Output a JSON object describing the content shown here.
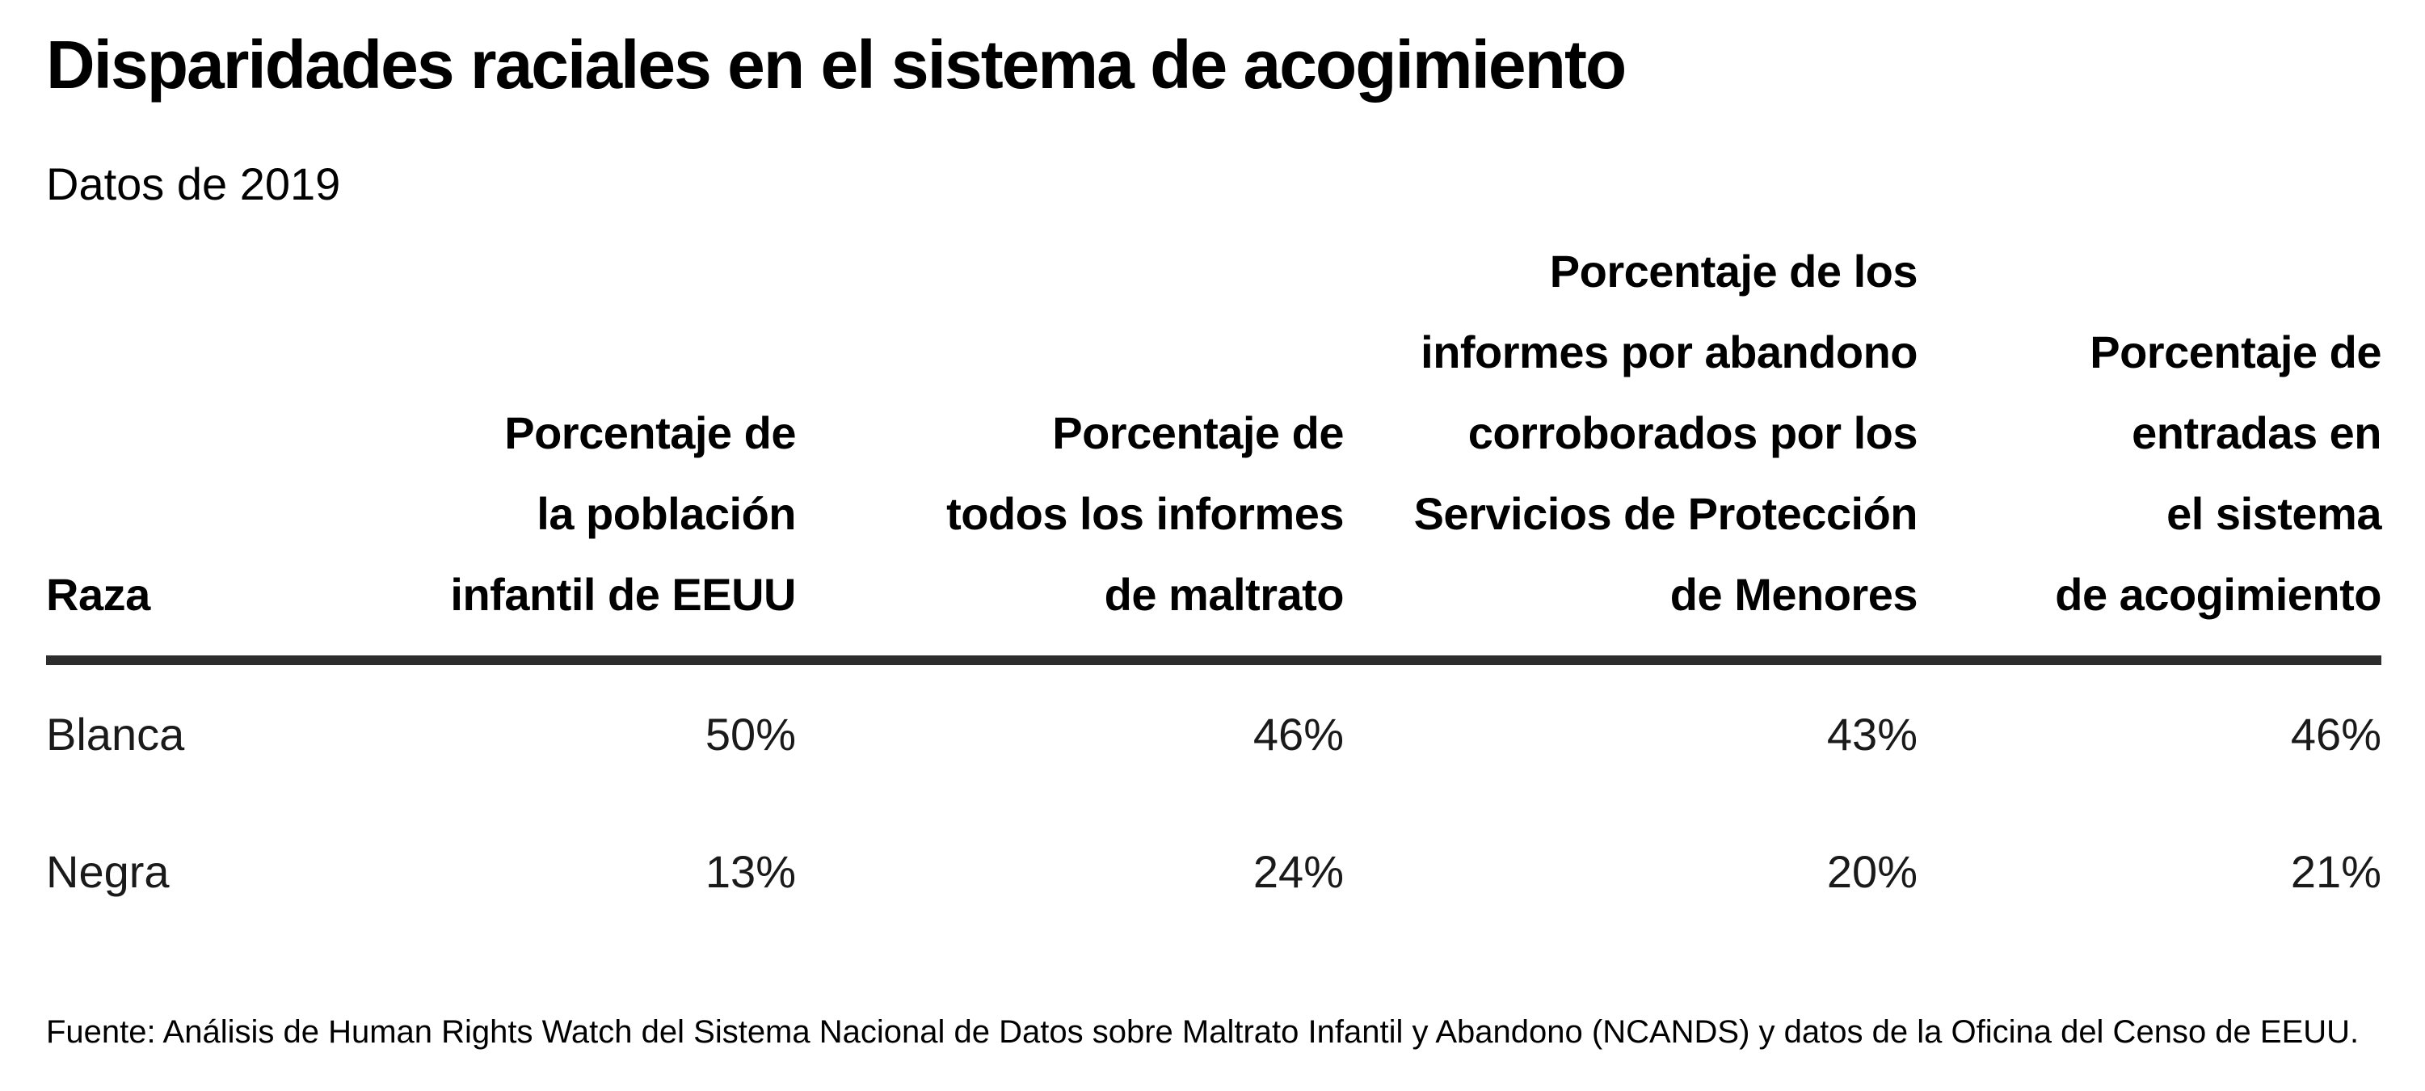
{
  "title": "Disparidades raciales en el sistema de acogimiento",
  "subtitle": "Datos de 2019",
  "source": "Fuente: Análisis de Human Rights Watch del Sistema Nacional de Datos sobre Maltrato Infantil y Abandono (NCANDS) y datos de la Oficina del Censo de EEUU.",
  "colors": {
    "background": "#ffffff",
    "text": "#000000",
    "data_text": "#1a1a1a",
    "rule": "#2d2d2d"
  },
  "table": {
    "header": {
      "race": "Raza",
      "child_population": "Porcentaje de\nla población\ninfantil de EEUU",
      "all_reports": "Porcentaje de\ntodos los informes\nde maltrato",
      "substantiated_reports": "Porcentaje de los\ninformes por abandono\ncorroborados por los\nServicios de Protección\nde Menores",
      "foster_entries": "Porcentaje de\nentradas en\nel sistema\nde acogimiento"
    },
    "rows": [
      {
        "race": "Blanca",
        "cells": [
          "50%",
          "46%",
          "43%",
          "46%"
        ]
      },
      {
        "race": "Negra",
        "cells": [
          "13%",
          "24%",
          "20%",
          "21%"
        ]
      }
    ]
  },
  "chart_data": {
    "type": "table",
    "title": "Disparidades raciales en el sistema de acogimiento",
    "subtitle": "Datos de 2019",
    "columns": [
      "Raza",
      "Porcentaje de la población infantil de EEUU",
      "Porcentaje de todos los informes de maltrato",
      "Porcentaje de los informes por abandono corroborados por los Servicios de Protección de Menores",
      "Porcentaje de entradas en el sistema de acogimiento"
    ],
    "rows": [
      [
        "Blanca",
        "50%",
        "46%",
        "43%",
        "46%"
      ],
      [
        "Negra",
        "13%",
        "24%",
        "20%",
        "21%"
      ]
    ],
    "units": "percent",
    "source": "Fuente: Análisis de Human Rights Watch del Sistema Nacional de Datos sobre Maltrato Infantil y Abandono (NCANDS) y datos de la Oficina del Censo de EEUU."
  }
}
